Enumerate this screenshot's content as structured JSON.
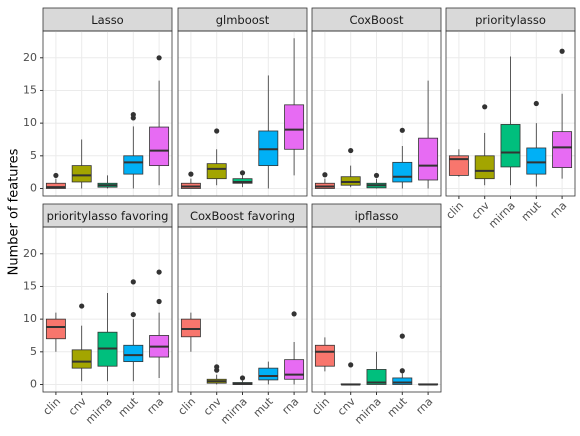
{
  "ylabel": "Number of features",
  "categories": [
    "clin",
    "cnv",
    "mirna",
    "mut",
    "rna"
  ],
  "colors": [
    "#F8766D",
    "#A3A500",
    "#00BF7D",
    "#00B0F6",
    "#E76BF3"
  ],
  "ylim": [
    -1.15,
    24.1
  ],
  "yticks": [
    0,
    5,
    10,
    15,
    20
  ],
  "grid": true,
  "chart_data": [
    {
      "type": "box",
      "title": "Lasso",
      "min": [
        0,
        0,
        0,
        0,
        0.5
      ],
      "q1": [
        0,
        1,
        0.2,
        2.2,
        3.5
      ],
      "median": [
        0.2,
        2,
        0.5,
        4,
        5.8
      ],
      "q3": [
        0.8,
        3.5,
        0.8,
        5,
        9.4
      ],
      "max": [
        1.5,
        7.5,
        2,
        9.5,
        16.5
      ],
      "outliers": [
        [
          2
        ],
        [],
        [],
        [
          10.8,
          11.3
        ],
        [
          20
        ]
      ]
    },
    {
      "type": "box",
      "title": "glmboost",
      "min": [
        0,
        0.5,
        0.2,
        0,
        2
      ],
      "q1": [
        0,
        1.5,
        0.8,
        3.5,
        6
      ],
      "median": [
        0.3,
        3,
        1,
        6,
        9
      ],
      "q3": [
        0.8,
        3.8,
        1.5,
        8.8,
        12.8
      ],
      "max": [
        1.5,
        6,
        2,
        17.3,
        23
      ],
      "outliers": [
        [
          2.2
        ],
        [
          8.8
        ],
        [
          2.4
        ],
        [],
        []
      ]
    },
    {
      "type": "box",
      "title": "CoxBoost",
      "min": [
        0,
        0.2,
        0,
        0,
        0
      ],
      "q1": [
        0,
        0.5,
        0.1,
        1,
        1.3
      ],
      "median": [
        0.3,
        1,
        0.5,
        1.8,
        3.5
      ],
      "q3": [
        0.8,
        1.8,
        0.8,
        4,
        7.7
      ],
      "max": [
        1.5,
        3.5,
        1.5,
        6.5,
        16.5
      ],
      "outliers": [
        [
          2.1
        ],
        [
          5.8
        ],
        [
          2
        ],
        [
          8.9
        ],
        []
      ]
    },
    {
      "type": "box",
      "title": "prioritylasso",
      "min": [
        1.8,
        0.5,
        0.5,
        0.3,
        1.5
      ],
      "q1": [
        2,
        1.5,
        3.3,
        2.2,
        3.2
      ],
      "median": [
        4.5,
        2.7,
        5.5,
        4,
        6.3
      ],
      "q3": [
        5,
        5,
        9.8,
        6.2,
        8.7
      ],
      "max": [
        6,
        8.5,
        20.2,
        10,
        14.5
      ],
      "outliers": [
        [],
        [
          12.5
        ],
        [],
        [
          13
        ],
        [
          21
        ]
      ]
    },
    {
      "type": "box",
      "title": "prioritylasso favoring",
      "min": [
        5,
        0.5,
        0.5,
        0.5,
        1
      ],
      "q1": [
        7,
        2.5,
        2.8,
        3.5,
        4.2
      ],
      "median": [
        8.8,
        3.5,
        5.5,
        4.5,
        5.8
      ],
      "q3": [
        10,
        5.3,
        8,
        6,
        7.5
      ],
      "max": [
        11,
        9,
        14,
        10,
        11
      ],
      "outliers": [
        [],
        [
          12
        ],
        [],
        [
          10.7,
          15.7
        ],
        [
          12.7,
          17.2
        ]
      ]
    },
    {
      "type": "box",
      "title": "CoxBoost favoring",
      "min": [
        5,
        0,
        0,
        0,
        0
      ],
      "q1": [
        7.3,
        0.2,
        0,
        0.7,
        0.8
      ],
      "median": [
        8.5,
        0.5,
        0.1,
        1.3,
        1.5
      ],
      "q3": [
        10,
        0.8,
        0.3,
        2.5,
        3.8
      ],
      "max": [
        11,
        1.5,
        0.6,
        3.5,
        6.5
      ],
      "outliers": [
        [],
        [
          2.2,
          2.7
        ],
        [
          1
        ],
        [],
        [
          10.8
        ]
      ]
    },
    {
      "type": "box",
      "title": "ipflasso",
      "min": [
        2,
        0,
        0,
        0,
        0
      ],
      "q1": [
        2.8,
        0,
        0,
        0,
        0
      ],
      "median": [
        5,
        0,
        0.3,
        0.3,
        0
      ],
      "q3": [
        6,
        0.1,
        2.3,
        1,
        0.1
      ],
      "max": [
        7.2,
        0.1,
        5,
        1.7,
        0.1
      ],
      "outliers": [
        [],
        [
          3
        ],
        [],
        [
          2.1,
          7.4
        ],
        []
      ]
    }
  ]
}
